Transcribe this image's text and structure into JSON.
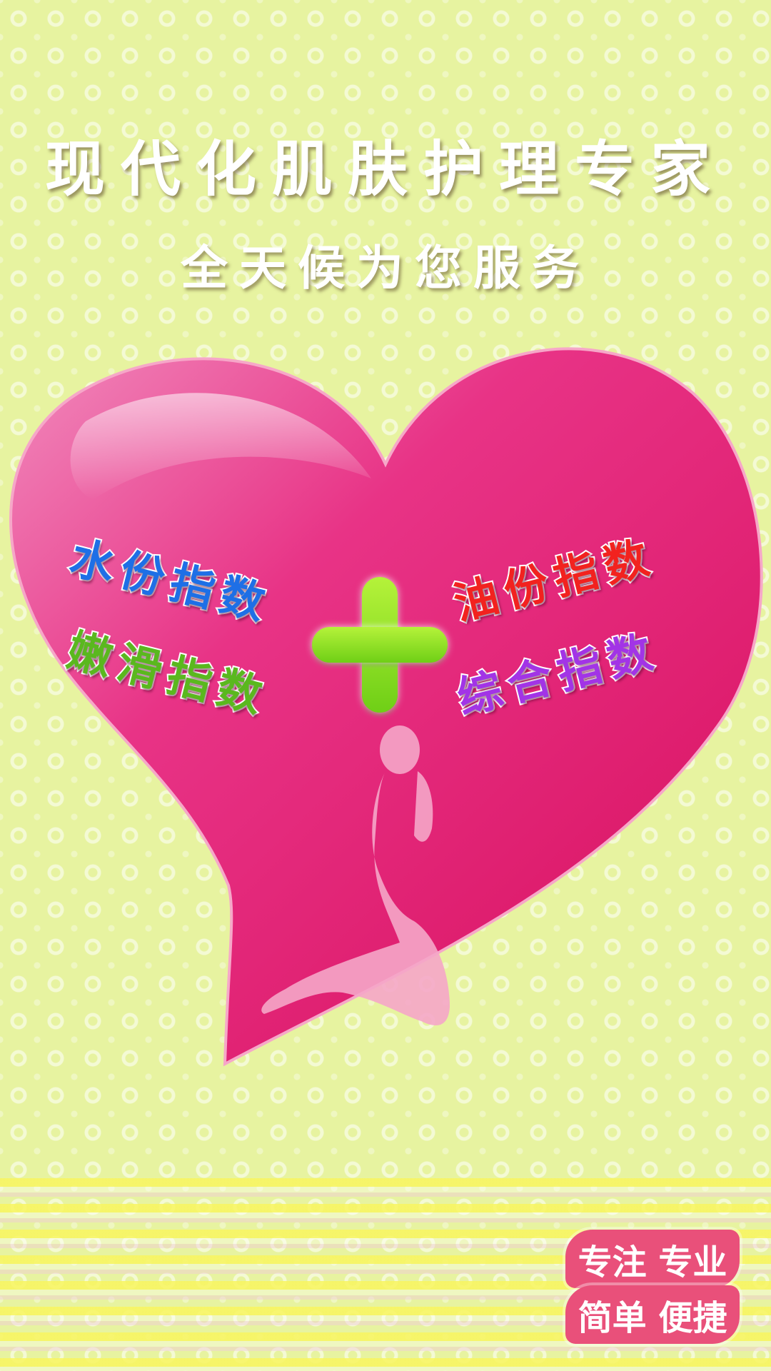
{
  "headline": "现代化肌肤护理专家",
  "subhead": "全天候为您服务",
  "indices": {
    "water": "水份指数",
    "smoothness": "嫩滑指数",
    "oil": "油份指数",
    "overall": "综合指数"
  },
  "badges": {
    "line1": "专注 专业",
    "line2": "简单 便捷"
  },
  "colors": {
    "background": "#e7f3a0",
    "heart": "#e01a6e",
    "plus": "#8ee32a",
    "water": "#1e6fe6",
    "smoothness": "#5ab81e",
    "oil": "#f2221f",
    "overall": "#a234e6",
    "badge": "#e9507a"
  },
  "icons": {
    "heart": "heart-graphic",
    "plus": "plus-icon",
    "figure": "woman-silhouette"
  }
}
